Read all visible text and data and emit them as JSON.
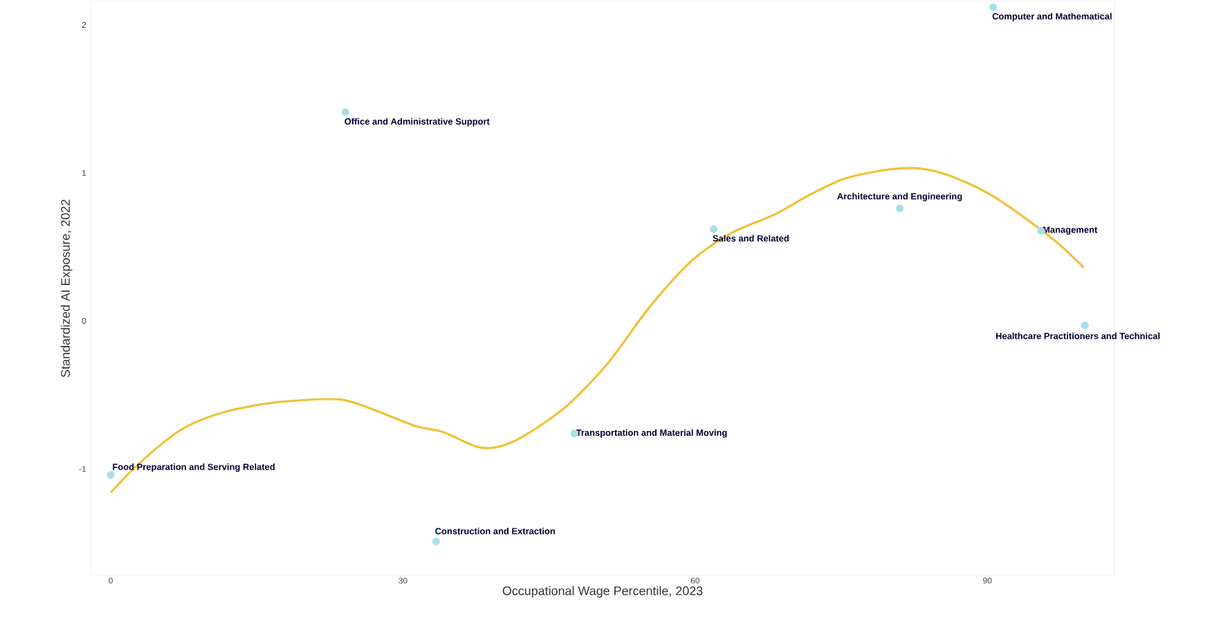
{
  "chart_data": {
    "type": "scatter",
    "xlabel": "Occupational Wage Percentile, 2023",
    "ylabel": "Standardized AI Exposure, 2022",
    "xlim": [
      -2,
      103
    ],
    "ylim": [
      -1.72,
      2.16
    ],
    "xticks": [
      0,
      30,
      60,
      90
    ],
    "yticks": [
      -1,
      0,
      1,
      2
    ],
    "grid": false,
    "series": [
      {
        "marker": "circle",
        "color": "#a9dfe8",
        "x": [
          0,
          24.1,
          33.4,
          47.6,
          61.9,
          81,
          90.6,
          95.5,
          100
        ],
        "values": [
          -1.04,
          1.41,
          -1.49,
          -0.76,
          0.62,
          0.76,
          2.12,
          0.61,
          -0.03
        ]
      },
      {
        "type": "line",
        "color": "#f2c037",
        "x": [
          0,
          2.8,
          7.1,
          11.4,
          17,
          23.4,
          27,
          31.3,
          34.1,
          37.6,
          39.8,
          42.6,
          46.9,
          51.1,
          55.4,
          59.7,
          63.9,
          68.2,
          71.7,
          75.3,
          79.5,
          83.1,
          86.6,
          90.9,
          96.6,
          99.9
        ],
        "values": [
          -1.16,
          -0.97,
          -0.74,
          -0.62,
          -0.55,
          -0.53,
          -0.6,
          -0.71,
          -0.75,
          -0.85,
          -0.85,
          -0.77,
          -0.57,
          -0.28,
          0.1,
          0.41,
          0.6,
          0.72,
          0.85,
          0.96,
          1.02,
          1.03,
          0.97,
          0.83,
          0.56,
          0.36
        ]
      }
    ],
    "annotations": [
      {
        "text": "Food Preparation and Serving Related",
        "x": 0,
        "y": -1.04
      },
      {
        "text": "Office and Administrative Support",
        "x": 24.1,
        "y": 1.41
      },
      {
        "text": "Construction and Extraction",
        "x": 33.4,
        "y": -1.49
      },
      {
        "text": "Transportation and Material Moving",
        "x": 47.6,
        "y": -0.76
      },
      {
        "text": "Sales and Related",
        "x": 61.9,
        "y": 0.62
      },
      {
        "text": "Architecture and Engineering",
        "x": 81,
        "y": 0.76
      },
      {
        "text": "Computer and Mathematical",
        "x": 90.6,
        "y": 2.12
      },
      {
        "text": "Management",
        "x": 95.5,
        "y": 0.61
      },
      {
        "text": "Healthcare Practitioners and Technical",
        "x": 100,
        "y": -0.03
      }
    ]
  }
}
